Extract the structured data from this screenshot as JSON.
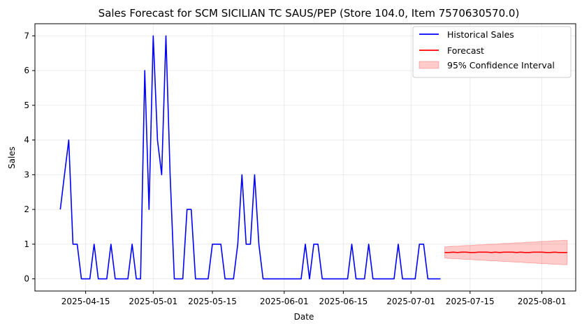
{
  "chart_data": {
    "type": "line",
    "title": "Sales Forecast for SCM SICILIAN TC SAUS/PEP (Store 104.0, Item 7570630570.0)",
    "xlabel": "Date",
    "ylabel": "Sales",
    "x_ticks": [
      "2025-04-15",
      "2025-05-01",
      "2025-05-15",
      "2025-06-01",
      "2025-06-15",
      "2025-07-01",
      "2025-07-15",
      "2025-08-01"
    ],
    "y_ticks": [
      "0",
      "1",
      "2",
      "3",
      "4",
      "5",
      "6",
      "7"
    ],
    "ylim": [
      -0.35,
      7.35
    ],
    "xlim": [
      "2025-04-03",
      "2025-08-09"
    ],
    "grid": true,
    "legend_position": "top-right",
    "series": [
      {
        "name": "Historical Sales",
        "color": "#0000ff",
        "x": [
          "2025-04-09",
          "2025-04-10",
          "2025-04-11",
          "2025-04-12",
          "2025-04-13",
          "2025-04-14",
          "2025-04-15",
          "2025-04-16",
          "2025-04-17",
          "2025-04-18",
          "2025-04-19",
          "2025-04-20",
          "2025-04-21",
          "2025-04-22",
          "2025-04-23",
          "2025-04-24",
          "2025-04-25",
          "2025-04-26",
          "2025-04-27",
          "2025-04-28",
          "2025-04-29",
          "2025-04-30",
          "2025-05-01",
          "2025-05-02",
          "2025-05-03",
          "2025-05-04",
          "2025-05-05",
          "2025-05-06",
          "2025-05-07",
          "2025-05-08",
          "2025-05-09",
          "2025-05-10",
          "2025-05-11",
          "2025-05-12",
          "2025-05-13",
          "2025-05-14",
          "2025-05-15",
          "2025-05-16",
          "2025-05-17",
          "2025-05-18",
          "2025-05-19",
          "2025-05-20",
          "2025-05-21",
          "2025-05-22",
          "2025-05-23",
          "2025-05-24",
          "2025-05-25",
          "2025-05-26",
          "2025-05-27",
          "2025-05-28",
          "2025-05-29",
          "2025-05-30",
          "2025-05-31",
          "2025-06-01",
          "2025-06-02",
          "2025-06-03",
          "2025-06-04",
          "2025-06-05",
          "2025-06-06",
          "2025-06-07",
          "2025-06-08",
          "2025-06-09",
          "2025-06-10",
          "2025-06-11",
          "2025-06-12",
          "2025-06-13",
          "2025-06-14",
          "2025-06-15",
          "2025-06-16",
          "2025-06-17",
          "2025-06-18",
          "2025-06-19",
          "2025-06-20",
          "2025-06-21",
          "2025-06-22",
          "2025-06-23",
          "2025-06-24",
          "2025-06-25",
          "2025-06-26",
          "2025-06-27",
          "2025-06-28",
          "2025-06-29",
          "2025-06-30",
          "2025-07-01",
          "2025-07-02",
          "2025-07-03",
          "2025-07-04",
          "2025-07-05",
          "2025-07-06",
          "2025-07-07",
          "2025-07-08"
        ],
        "values": [
          2,
          3,
          4,
          1,
          1,
          0,
          0,
          0,
          1,
          0,
          0,
          0,
          1,
          0,
          0,
          0,
          0,
          1,
          0,
          0,
          6,
          2,
          7,
          4,
          3,
          7,
          3,
          0,
          0,
          0,
          2,
          2,
          0,
          0,
          0,
          0,
          1,
          1,
          1,
          0,
          0,
          0,
          1,
          3,
          1,
          1,
          3,
          1,
          0,
          0,
          0,
          0,
          0,
          0,
          0,
          0,
          0,
          0,
          1,
          0,
          1,
          1,
          0,
          0,
          0,
          0,
          0,
          0,
          0,
          1,
          0,
          0,
          0,
          1,
          0,
          0,
          0,
          0,
          0,
          0,
          1,
          0,
          0,
          0,
          0,
          1,
          1,
          0,
          0,
          0,
          0
        ]
      },
      {
        "name": "Forecast",
        "color": "#ff0000",
        "x": [
          "2025-07-09",
          "2025-07-10",
          "2025-07-11",
          "2025-07-12",
          "2025-07-13",
          "2025-07-14",
          "2025-07-15",
          "2025-07-16",
          "2025-07-17",
          "2025-07-18",
          "2025-07-19",
          "2025-07-20",
          "2025-07-21",
          "2025-07-22",
          "2025-07-23",
          "2025-07-24",
          "2025-07-25",
          "2025-07-26",
          "2025-07-27",
          "2025-07-28",
          "2025-07-29",
          "2025-07-30",
          "2025-07-31",
          "2025-08-01",
          "2025-08-02",
          "2025-08-03",
          "2025-08-04",
          "2025-08-05",
          "2025-08-06",
          "2025-08-07"
        ],
        "values": [
          0.76,
          0.76,
          0.77,
          0.76,
          0.77,
          0.77,
          0.76,
          0.76,
          0.77,
          0.77,
          0.77,
          0.76,
          0.77,
          0.76,
          0.77,
          0.77,
          0.77,
          0.76,
          0.77,
          0.76,
          0.76,
          0.77,
          0.77,
          0.77,
          0.76,
          0.76,
          0.77,
          0.76,
          0.76,
          0.76
        ],
        "lower": [
          0.6,
          0.59,
          0.58,
          0.58,
          0.57,
          0.56,
          0.56,
          0.55,
          0.54,
          0.54,
          0.53,
          0.52,
          0.52,
          0.51,
          0.5,
          0.5,
          0.49,
          0.48,
          0.48,
          0.47,
          0.46,
          0.46,
          0.45,
          0.44,
          0.44,
          0.43,
          0.42,
          0.42,
          0.41,
          0.41
        ],
        "upper": [
          0.92,
          0.93,
          0.94,
          0.94,
          0.95,
          0.96,
          0.96,
          0.97,
          0.98,
          0.98,
          0.99,
          1.0,
          1.0,
          1.01,
          1.02,
          1.02,
          1.03,
          1.04,
          1.04,
          1.05,
          1.06,
          1.06,
          1.07,
          1.08,
          1.08,
          1.09,
          1.1,
          1.1,
          1.11,
          1.11
        ]
      }
    ],
    "confidence_band": {
      "name": "95% Confidence Interval",
      "color": "#ff0000",
      "opacity": 0.2
    }
  }
}
